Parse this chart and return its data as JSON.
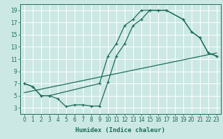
{
  "xlabel": "Humidex (Indice chaleur)",
  "bg_color": "#cce8e4",
  "grid_color": "#ffffff",
  "line_color": "#1a6b5a",
  "xlim": [
    -0.5,
    23.5
  ],
  "ylim": [
    2,
    20
  ],
  "xticks": [
    0,
    1,
    2,
    3,
    4,
    5,
    6,
    7,
    8,
    9,
    10,
    11,
    12,
    13,
    14,
    15,
    16,
    17,
    18,
    19,
    20,
    21,
    22,
    23
  ],
  "yticks": [
    3,
    5,
    7,
    9,
    11,
    13,
    15,
    17,
    19
  ],
  "line1_x": [
    0,
    1,
    2,
    3,
    9,
    10,
    11,
    12,
    13,
    14,
    15,
    16,
    17,
    19,
    20,
    21,
    22,
    23
  ],
  "line1_y": [
    7,
    6.5,
    5,
    5,
    7,
    11.5,
    13.5,
    16.5,
    17.5,
    19,
    19,
    19,
    19,
    17.5,
    15.5,
    14.5,
    12,
    11.5
  ],
  "line2_x": [
    0,
    1,
    2,
    3,
    4,
    5,
    6,
    7,
    8,
    9,
    10,
    11,
    12,
    13,
    14,
    15,
    16,
    17,
    19,
    20,
    21,
    22,
    23
  ],
  "line2_y": [
    7,
    6.5,
    5,
    5,
    4.5,
    3.2,
    3.5,
    3.5,
    3.3,
    3.3,
    7.2,
    11.5,
    13.5,
    16.5,
    17.5,
    19,
    19,
    19,
    17.5,
    15.5,
    14.5,
    12,
    11.5
  ],
  "line3_x": [
    0,
    23
  ],
  "line3_y": [
    5.5,
    12
  ]
}
